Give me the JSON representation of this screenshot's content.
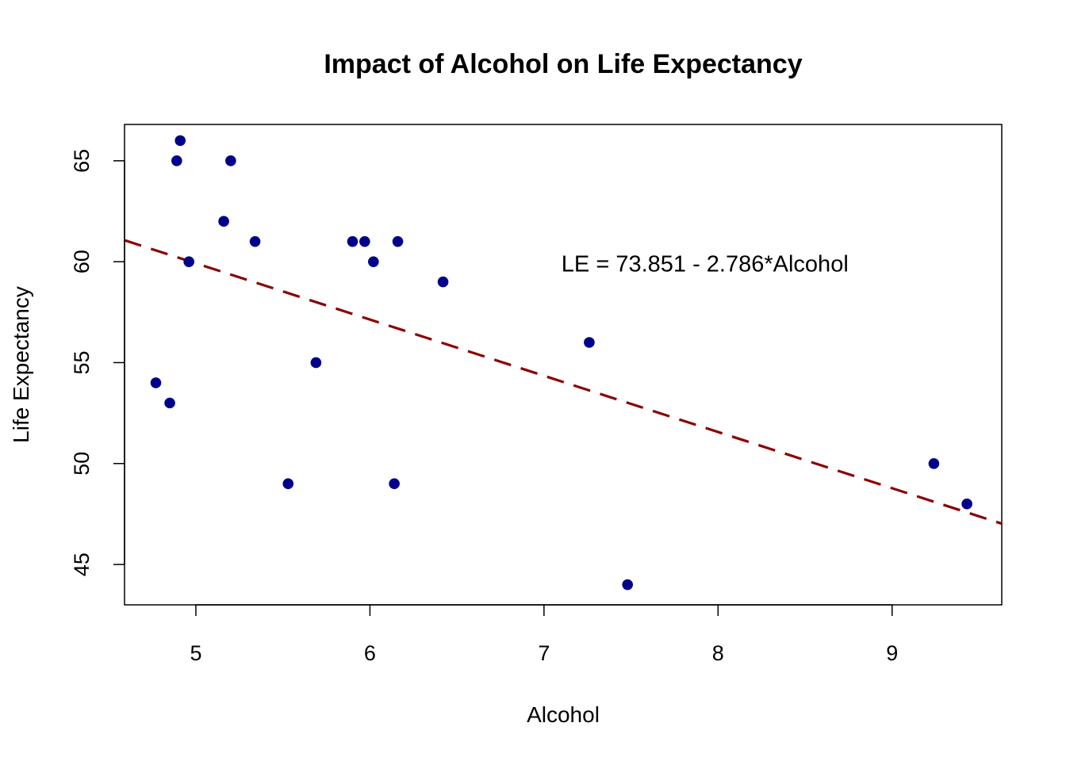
{
  "chart_data": {
    "type": "scatter",
    "title": "Impact of Alcohol on Life Expectancy",
    "xlabel": "Alcohol",
    "ylabel": "Life Expectancy",
    "xlim": [
      4.59,
      9.63
    ],
    "ylim": [
      43.0,
      66.8
    ],
    "xticks": [
      5,
      6,
      7,
      8,
      9
    ],
    "yticks": [
      45,
      50,
      55,
      60,
      65
    ],
    "grid": false,
    "points": [
      {
        "x": 4.91,
        "y": 66
      },
      {
        "x": 4.89,
        "y": 65
      },
      {
        "x": 5.2,
        "y": 65
      },
      {
        "x": 5.16,
        "y": 62
      },
      {
        "x": 5.34,
        "y": 61
      },
      {
        "x": 4.96,
        "y": 60
      },
      {
        "x": 5.9,
        "y": 61
      },
      {
        "x": 5.97,
        "y": 61
      },
      {
        "x": 6.16,
        "y": 61
      },
      {
        "x": 6.02,
        "y": 60
      },
      {
        "x": 6.42,
        "y": 59
      },
      {
        "x": 7.26,
        "y": 56
      },
      {
        "x": 5.69,
        "y": 55
      },
      {
        "x": 4.77,
        "y": 54
      },
      {
        "x": 4.85,
        "y": 53
      },
      {
        "x": 5.53,
        "y": 49
      },
      {
        "x": 6.14,
        "y": 49
      },
      {
        "x": 9.24,
        "y": 50
      },
      {
        "x": 9.43,
        "y": 48
      },
      {
        "x": 7.48,
        "y": 44
      }
    ],
    "regression": {
      "intercept": 73.851,
      "slope": -2.786
    },
    "annotation": {
      "text": "LE = 73.851 - 2.786*Alcohol",
      "x": 7.1,
      "y": 59.9
    },
    "colors": {
      "points": "#00008B",
      "line": "#8B0000"
    }
  }
}
